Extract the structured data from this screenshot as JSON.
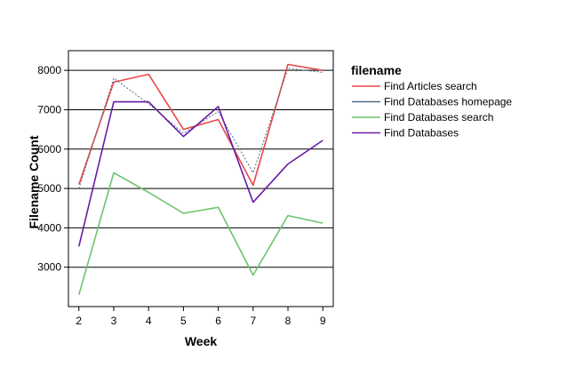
{
  "chart_data": {
    "type": "line",
    "title": "",
    "xlabel": "Week",
    "ylabel": "Filename Count",
    "x": [
      2,
      3,
      4,
      5,
      6,
      7,
      8,
      9
    ],
    "xlim": [
      1.7,
      9.3
    ],
    "ylim": [
      2000,
      8500
    ],
    "yticks": [
      3000,
      4000,
      5000,
      6000,
      7000,
      8000
    ],
    "grid": "horizontal",
    "legend_title": "filename",
    "legend_position": "right",
    "series": [
      {
        "name": "Find Articles search",
        "color": "#e8474a",
        "style": "solid",
        "values": [
          5100,
          7700,
          7900,
          6500,
          6750,
          5080,
          8150,
          8000
        ]
      },
      {
        "name": "Find Databases homepage",
        "color": "#4e6d8c",
        "style": "dotted",
        "values": [
          5000,
          7800,
          7150,
          6400,
          6950,
          5400,
          8050,
          7950
        ]
      },
      {
        "name": "Find Databases search",
        "color": "#6cc46c",
        "style": "solid",
        "values": [
          2300,
          5400,
          4900,
          4370,
          4520,
          2800,
          4310,
          4120
        ]
      },
      {
        "name": "Find Databases",
        "color": "#6a1aa5",
        "style": "solid",
        "values": [
          3530,
          7200,
          7200,
          6320,
          7080,
          4650,
          5620,
          6220
        ]
      }
    ]
  }
}
